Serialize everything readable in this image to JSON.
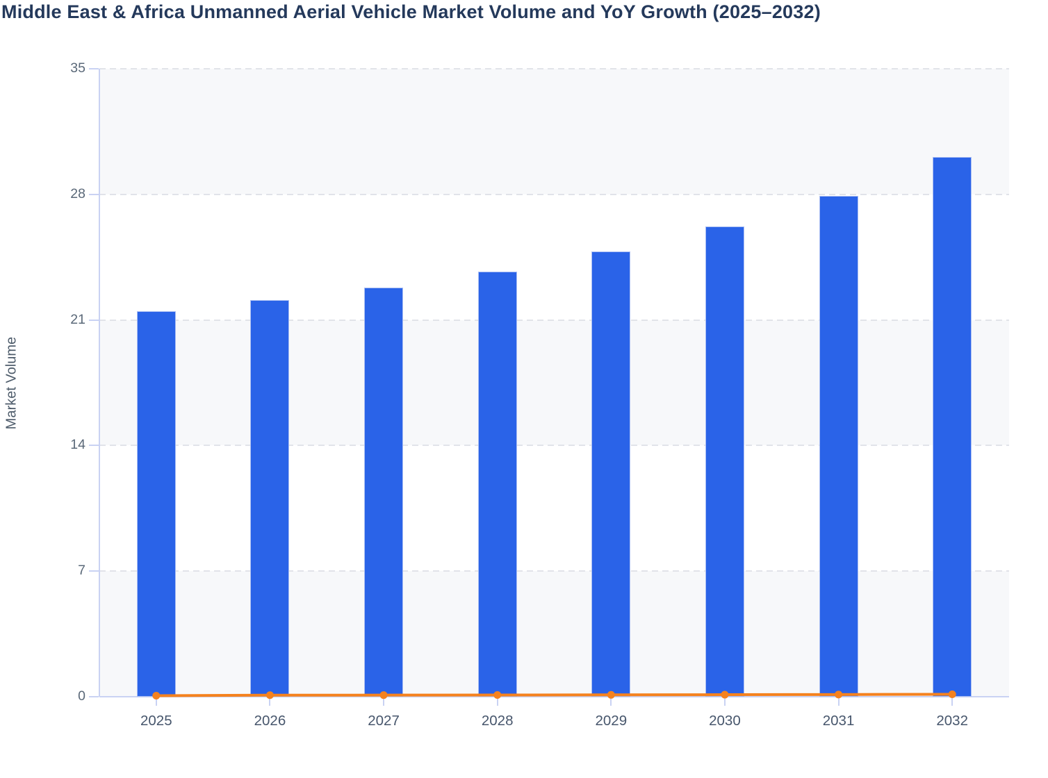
{
  "title": "Middle East & Africa Unmanned Aerial Vehicle Market Volume and YoY Growth (2025–2032)",
  "chart_data": {
    "type": "bar",
    "combo_types": [
      "bar",
      "line"
    ],
    "title": "Middle East & Africa Unmanned Aerial Vehicle Market Volume and YoY Growth (2025–2032)",
    "xlabel": "",
    "ylabel": "Market Volume",
    "categories": [
      "2025",
      "2026",
      "2027",
      "2028",
      "2029",
      "2030",
      "2031",
      "2032"
    ],
    "series": [
      {
        "name": "Market Volume",
        "type": "bar",
        "color": "#2a63e8",
        "values": [
          21.5,
          22.1,
          22.8,
          23.7,
          24.8,
          26.2,
          27.9,
          30.1
        ]
      },
      {
        "name": "YoY Growth",
        "type": "line",
        "color": "#f5821e",
        "values": [
          0,
          0.028,
          0.032,
          0.039,
          0.046,
          0.056,
          0.065,
          0.079
        ]
      }
    ],
    "ylim": [
      0,
      35
    ],
    "yticks": [
      0,
      7,
      14,
      21,
      28,
      35
    ],
    "grid": "horizontal-dashed",
    "band_fill": "#f7f8fa",
    "axis_color": "#c9d2f3",
    "legend_position": "none",
    "title_color": "#24395b"
  }
}
